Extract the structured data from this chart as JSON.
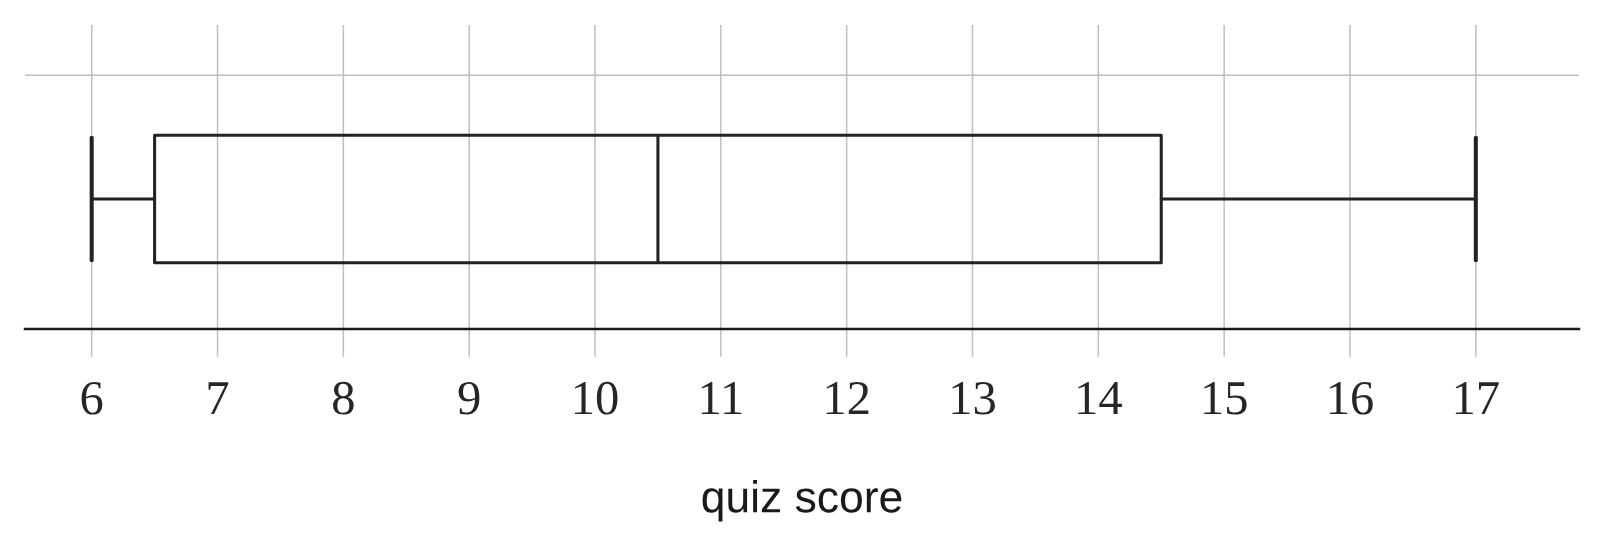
{
  "chart_data": {
    "type": "box",
    "orientation": "horizontal",
    "xlabel": "quiz score",
    "categories": [
      null
    ],
    "boxes": [
      {
        "low": 6,
        "q1": 6.5,
        "median": 10.5,
        "q3": 14.5,
        "high": 17
      }
    ],
    "color": "#222222",
    "xlim": [
      5.47,
      17.82
    ],
    "xticks": [
      6,
      7,
      8,
      9,
      10,
      11,
      12,
      13,
      14,
      15,
      16,
      17
    ],
    "grid": true,
    "tick_labels": "x"
  }
}
